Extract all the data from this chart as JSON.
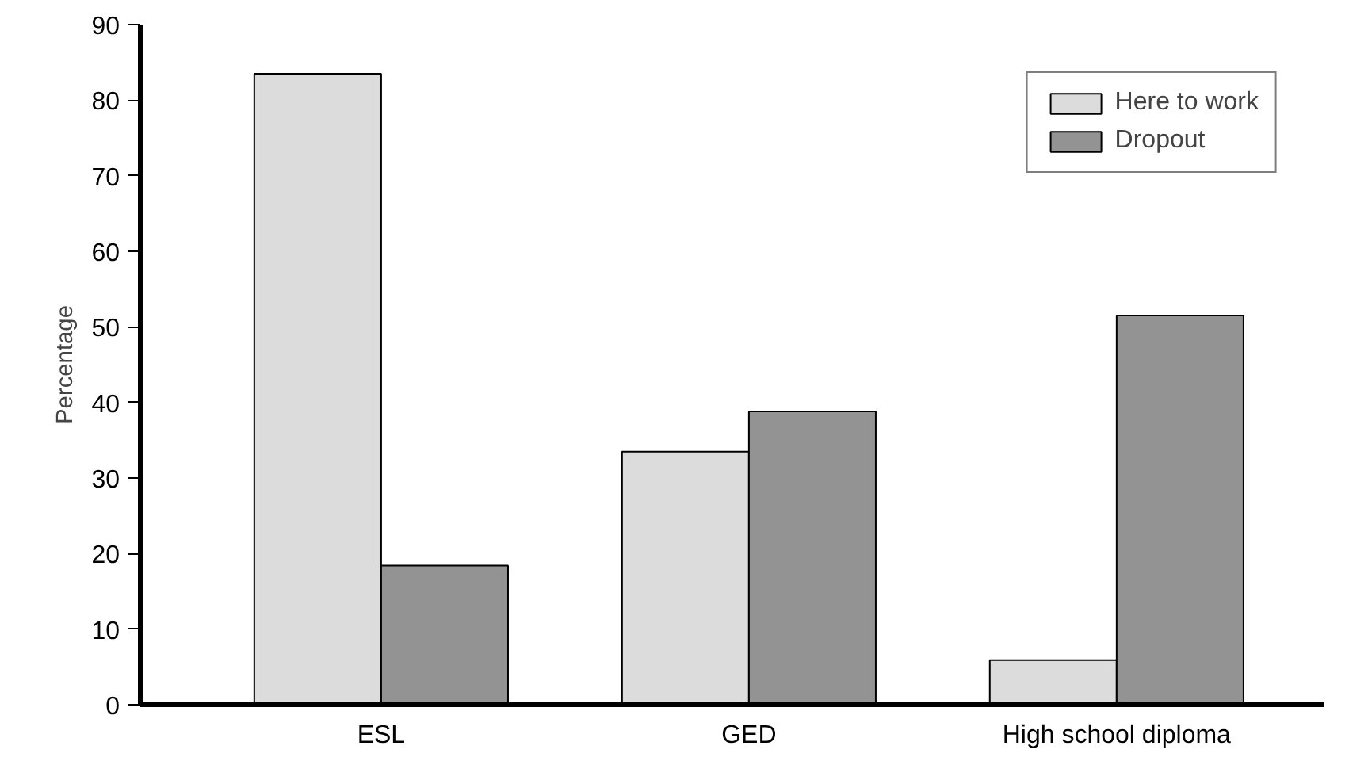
{
  "chart_data": {
    "type": "bar",
    "ylabel": "Percentage",
    "categories": [
      "ESL",
      "GED",
      "High school diploma"
    ],
    "series": [
      {
        "name": "Here to work",
        "color": "#dcdcdc",
        "values": [
          83.5,
          33.5,
          5.9
        ]
      },
      {
        "name": "Dropout",
        "color": "#939393",
        "values": [
          18.4,
          38.8,
          51.5
        ]
      }
    ],
    "ylim": [
      0,
      90
    ],
    "yticks": [
      0,
      10,
      20,
      30,
      40,
      50,
      60,
      70,
      80,
      90
    ],
    "grid": false,
    "legend": "top right"
  }
}
